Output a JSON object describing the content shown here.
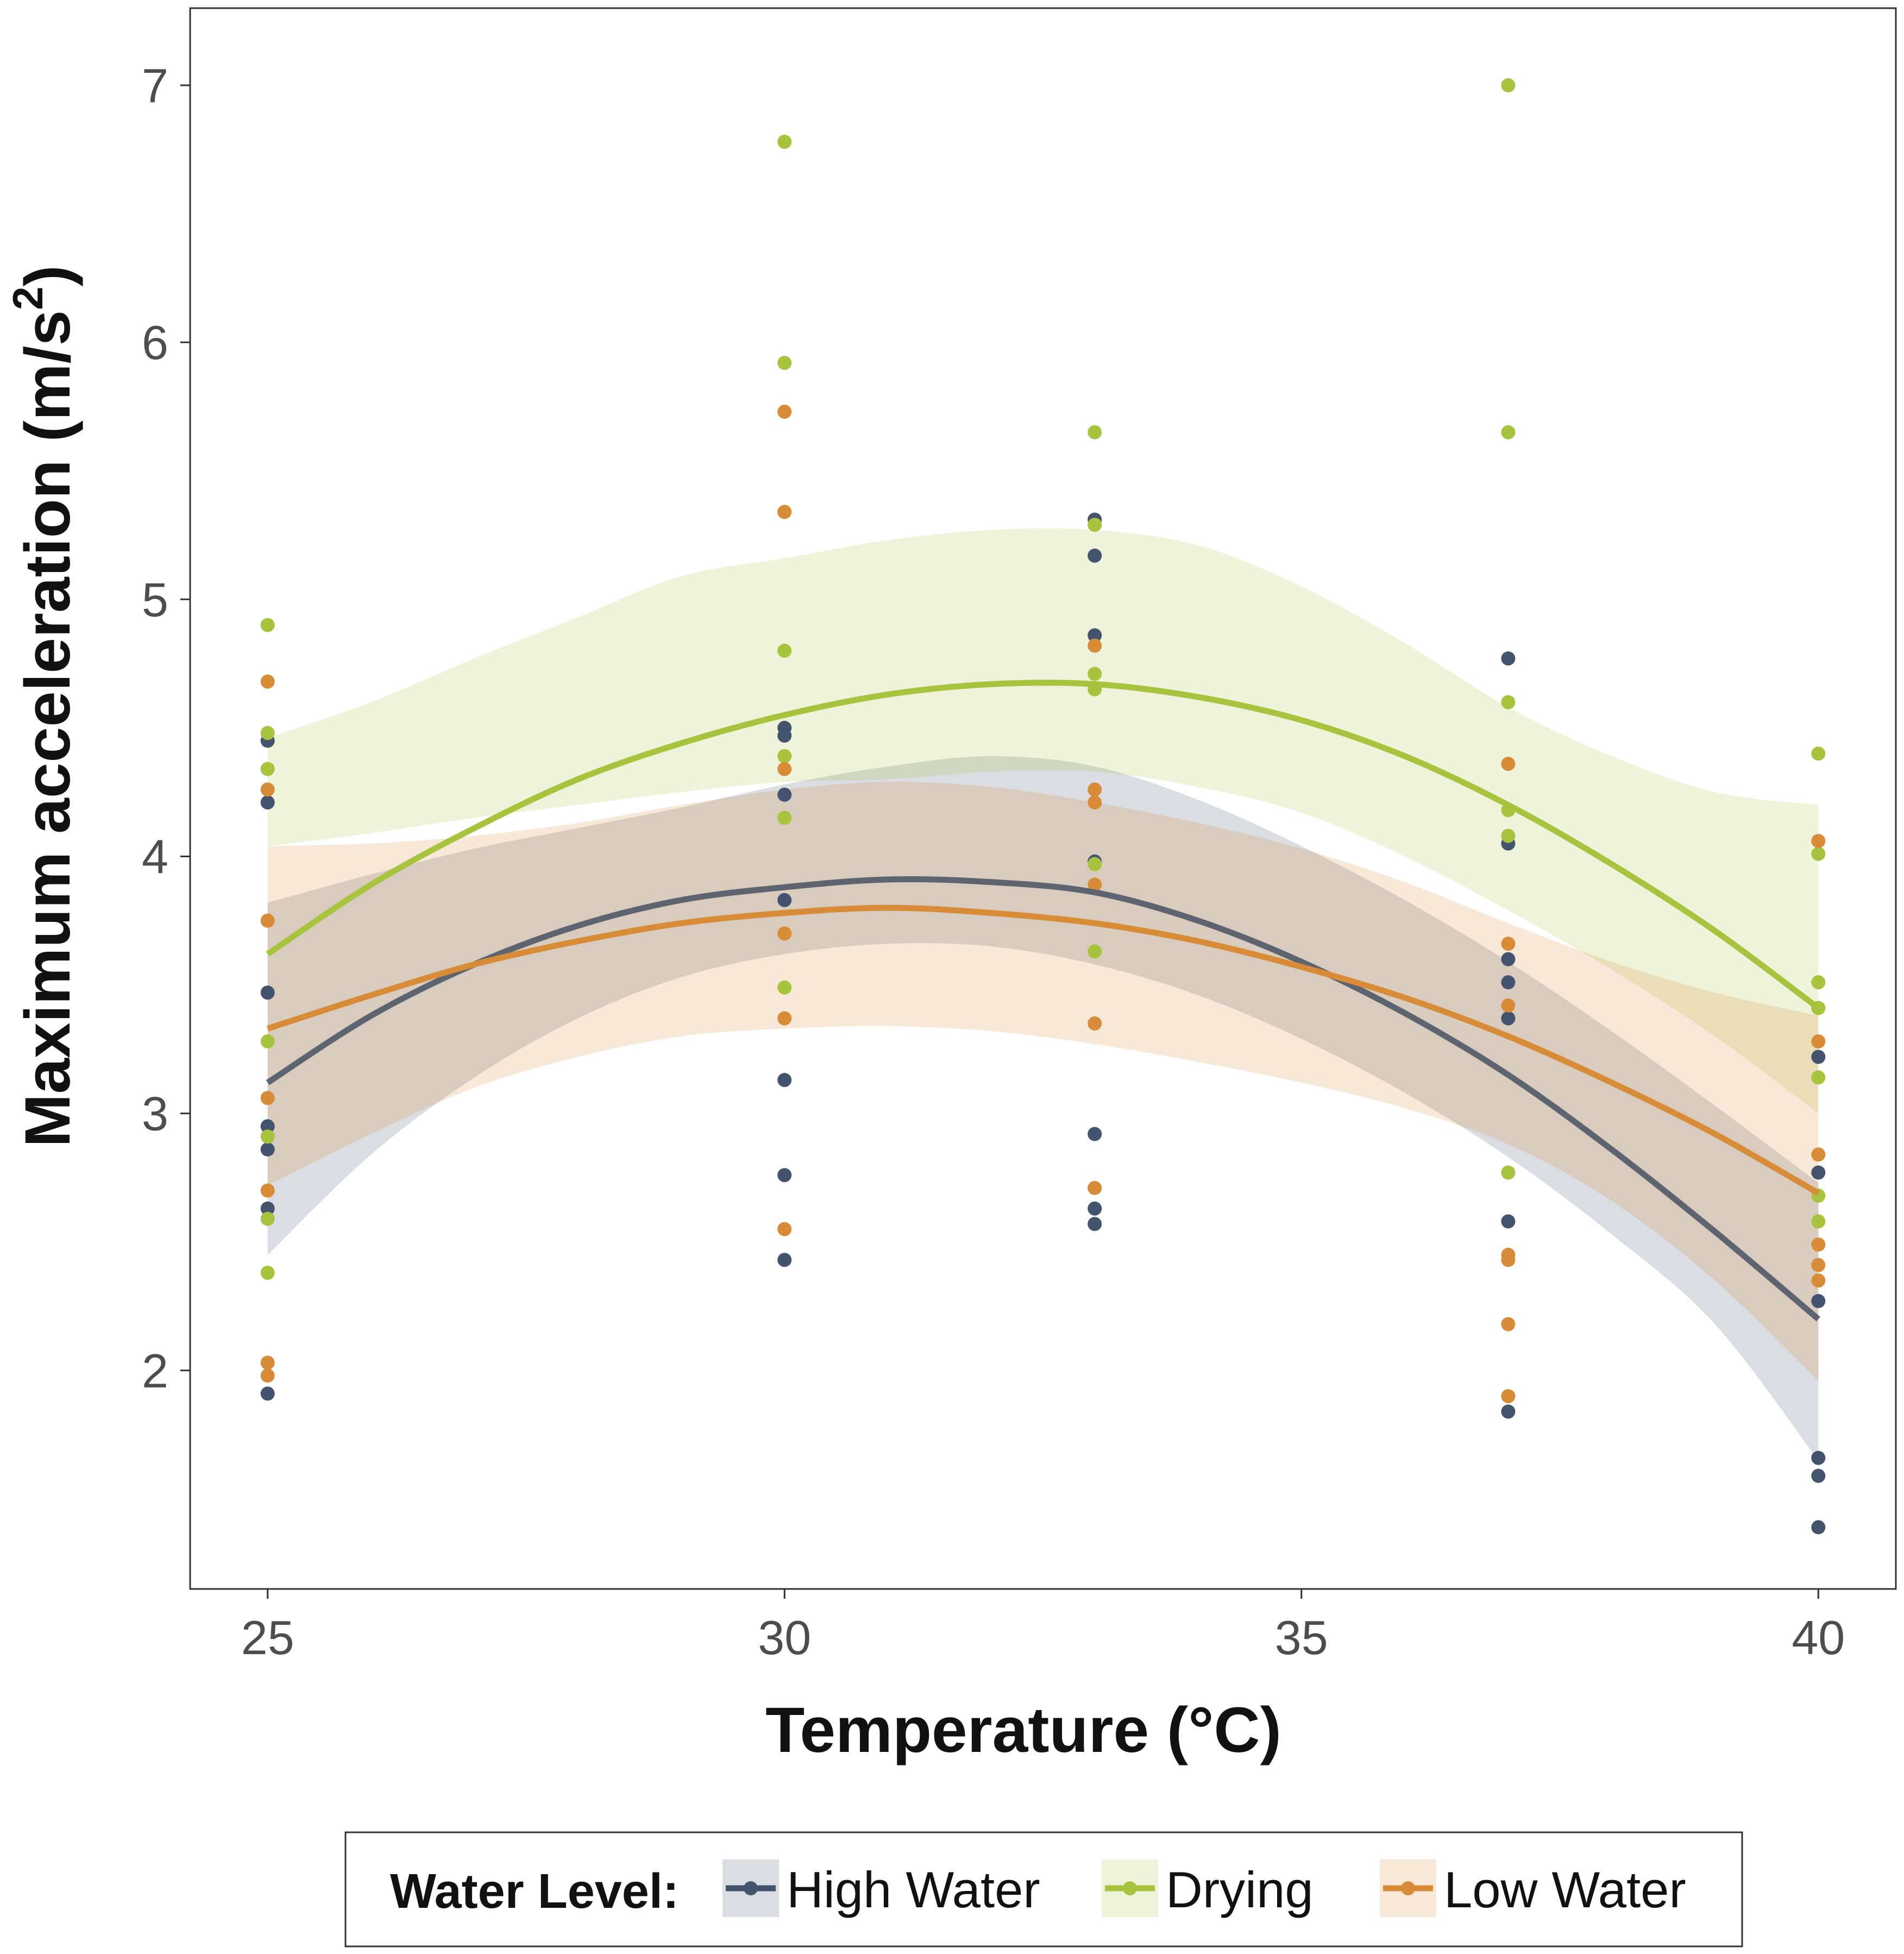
{
  "chart_data": {
    "type": "scatter",
    "title": "",
    "xlabel": "Temperature (°C)",
    "ylabel_main": "Maximum acceleration (m/s",
    "ylabel_sup": "2",
    "ylabel_close": ")",
    "xlim": [
      24.25,
      40.75
    ],
    "ylim": [
      1.15,
      7.3
    ],
    "x_ticks": [
      25,
      30,
      35,
      40
    ],
    "x_tick_labels": [
      "25",
      "30",
      "35",
      "40"
    ],
    "y_ticks": [
      2,
      3,
      4,
      5,
      6,
      7
    ],
    "y_tick_labels": [
      "2",
      "3",
      "4",
      "5",
      "6",
      "7"
    ],
    "grid": false,
    "legend": {
      "position": "bottom",
      "title": "Water Level:",
      "entries": [
        "High Water",
        "Drying",
        "Low Water"
      ]
    },
    "series": [
      {
        "name": "High Water",
        "color": "#44546f",
        "points": [
          [
            25,
            4.45
          ],
          [
            25,
            4.21
          ],
          [
            25,
            3.47
          ],
          [
            25,
            2.95
          ],
          [
            25,
            2.86
          ],
          [
            25,
            2.63
          ],
          [
            25,
            1.91
          ],
          [
            30,
            4.5
          ],
          [
            30,
            4.47
          ],
          [
            30,
            4.24
          ],
          [
            30,
            3.83
          ],
          [
            30,
            3.13
          ],
          [
            30,
            2.76
          ],
          [
            30,
            2.43
          ],
          [
            33,
            5.31
          ],
          [
            33,
            5.17
          ],
          [
            33,
            4.86
          ],
          [
            33,
            3.98
          ],
          [
            33,
            2.92
          ],
          [
            33,
            2.63
          ],
          [
            33,
            2.57
          ],
          [
            37,
            4.77
          ],
          [
            37,
            4.05
          ],
          [
            37,
            3.6
          ],
          [
            37,
            3.51
          ],
          [
            37,
            3.37
          ],
          [
            37,
            2.58
          ],
          [
            37,
            1.84
          ],
          [
            40,
            3.22
          ],
          [
            40,
            2.77
          ],
          [
            40,
            2.27
          ],
          [
            40,
            1.66
          ],
          [
            40,
            1.59
          ],
          [
            40,
            1.39
          ]
        ],
        "fit": {
          "x": [
            25,
            26,
            27,
            28,
            29,
            30,
            31,
            32,
            33,
            34,
            35,
            36,
            37,
            38,
            39,
            40
          ],
          "y": [
            3.12,
            3.38,
            3.58,
            3.73,
            3.83,
            3.88,
            3.91,
            3.9,
            3.86,
            3.75,
            3.59,
            3.39,
            3.15,
            2.86,
            2.54,
            2.2
          ],
          "lower": [
            2.45,
            2.84,
            3.14,
            3.37,
            3.53,
            3.62,
            3.66,
            3.65,
            3.58,
            3.46,
            3.29,
            3.08,
            2.83,
            2.53,
            2.18,
            1.65
          ],
          "upper": [
            3.82,
            3.93,
            4.03,
            4.11,
            4.19,
            4.28,
            4.35,
            4.39,
            4.35,
            4.22,
            4.04,
            3.83,
            3.59,
            3.32,
            3.03,
            2.73
          ]
        }
      },
      {
        "name": "Drying",
        "color": "#a8c43f",
        "points": [
          [
            25,
            4.9
          ],
          [
            25,
            4.48
          ],
          [
            25,
            4.34
          ],
          [
            25,
            3.28
          ],
          [
            25,
            2.91
          ],
          [
            25,
            2.59
          ],
          [
            25,
            2.38
          ],
          [
            30,
            6.78
          ],
          [
            30,
            5.92
          ],
          [
            30,
            4.8
          ],
          [
            30,
            4.39
          ],
          [
            30,
            4.15
          ],
          [
            30,
            3.49
          ],
          [
            33,
            5.65
          ],
          [
            33,
            5.29
          ],
          [
            33,
            4.71
          ],
          [
            33,
            4.65
          ],
          [
            33,
            3.97
          ],
          [
            33,
            3.63
          ],
          [
            37,
            7.0
          ],
          [
            37,
            5.65
          ],
          [
            37,
            4.6
          ],
          [
            37,
            4.18
          ],
          [
            37,
            4.08
          ],
          [
            37,
            2.77
          ],
          [
            40,
            4.4
          ],
          [
            40,
            4.01
          ],
          [
            40,
            3.51
          ],
          [
            40,
            3.41
          ],
          [
            40,
            3.14
          ],
          [
            40,
            2.68
          ],
          [
            40,
            2.58
          ]
        ],
        "fit": {
          "x": [
            25,
            26,
            27,
            28,
            29,
            30,
            31,
            32,
            33,
            34,
            35,
            36,
            37,
            38,
            39,
            40
          ],
          "y": [
            3.62,
            3.89,
            4.11,
            4.3,
            4.44,
            4.55,
            4.63,
            4.67,
            4.67,
            4.62,
            4.53,
            4.39,
            4.2,
            3.97,
            3.71,
            3.41
          ],
          "lower": [
            4.04,
            4.09,
            4.15,
            4.2,
            4.25,
            4.29,
            4.3,
            4.33,
            4.33,
            4.27,
            4.17,
            4.0,
            3.79,
            3.56,
            3.3,
            3.0
          ],
          "upper": [
            4.46,
            4.6,
            4.77,
            4.93,
            5.09,
            5.16,
            5.23,
            5.27,
            5.27,
            5.21,
            5.05,
            4.83,
            4.58,
            4.39,
            4.25,
            4.2
          ]
        }
      },
      {
        "name": "Low Water",
        "color": "#d88c38",
        "points": [
          [
            25,
            4.68
          ],
          [
            25,
            4.26
          ],
          [
            25,
            3.75
          ],
          [
            25,
            3.06
          ],
          [
            25,
            2.7
          ],
          [
            25,
            2.03
          ],
          [
            25,
            1.98
          ],
          [
            30,
            5.73
          ],
          [
            30,
            5.34
          ],
          [
            30,
            4.34
          ],
          [
            30,
            3.7
          ],
          [
            30,
            3.37
          ],
          [
            30,
            2.55
          ],
          [
            33,
            4.82
          ],
          [
            33,
            4.26
          ],
          [
            33,
            4.21
          ],
          [
            33,
            3.89
          ],
          [
            33,
            3.35
          ],
          [
            33,
            2.71
          ],
          [
            37,
            4.36
          ],
          [
            37,
            3.66
          ],
          [
            37,
            3.42
          ],
          [
            37,
            2.45
          ],
          [
            37,
            2.43
          ],
          [
            37,
            2.18
          ],
          [
            37,
            1.9
          ],
          [
            40,
            4.06
          ],
          [
            40,
            3.28
          ],
          [
            40,
            2.84
          ],
          [
            40,
            2.49
          ],
          [
            40,
            2.41
          ],
          [
            40,
            2.35
          ]
        ],
        "fit": {
          "x": [
            25,
            26,
            27,
            28,
            29,
            30,
            31,
            32,
            33,
            34,
            35,
            36,
            37,
            38,
            39,
            40
          ],
          "y": [
            3.33,
            3.46,
            3.58,
            3.67,
            3.74,
            3.78,
            3.8,
            3.78,
            3.74,
            3.67,
            3.57,
            3.45,
            3.3,
            3.12,
            2.92,
            2.69
          ],
          "lower": [
            2.72,
            2.92,
            3.1,
            3.22,
            3.3,
            3.33,
            3.34,
            3.32,
            3.27,
            3.2,
            3.12,
            3.02,
            2.88,
            2.66,
            2.35,
            1.96
          ],
          "upper": [
            4.04,
            4.05,
            4.08,
            4.13,
            4.2,
            4.26,
            4.29,
            4.27,
            4.21,
            4.13,
            4.03,
            3.9,
            3.74,
            3.59,
            3.47,
            3.38
          ]
        }
      }
    ]
  }
}
